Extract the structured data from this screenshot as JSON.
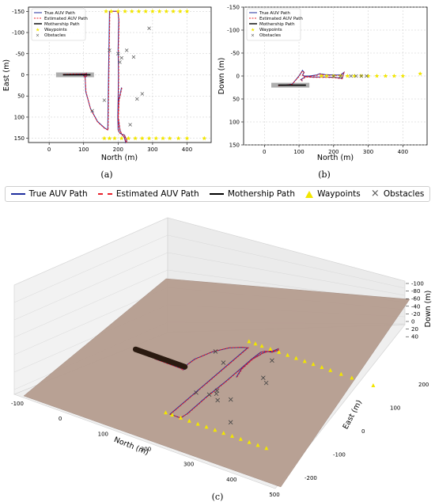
{
  "colors": {
    "true_path": "#1f2e9e",
    "estimated_path": "#e8202a",
    "mothership": "#000000",
    "waypoints": "#f2e600",
    "obstacles": "#555555",
    "floor": "#b39a8c",
    "shadow": "#a0a0a0"
  },
  "legend_labels": {
    "true": "True AUV Path",
    "est": "Estimated AUV Path",
    "ship": "Mothership Path",
    "wp": "Waypoints",
    "obs": "Obstacles"
  },
  "panel_labels": {
    "a": "(a)",
    "b": "(b)",
    "c": "(c)"
  },
  "chart_data": [
    {
      "type": "line",
      "panel": "(a)",
      "xlabel": "North (m)",
      "ylabel": "East (m)",
      "xlim": [
        -60,
        470
      ],
      "ylim": [
        -160,
        160
      ],
      "y_inverted": true,
      "xticks": [
        0,
        100,
        200,
        300,
        400
      ],
      "yticks": [
        -150,
        -100,
        -50,
        0,
        50,
        100,
        150
      ],
      "grid": true,
      "legend_position": "top-left",
      "legend": [
        "True AUV Path",
        "Estimated AUV Path",
        "Mothership Path",
        "Waypoints",
        "Obstacles"
      ],
      "series": [
        {
          "name": "True AUV Path",
          "x": [
            40,
            70,
            100,
            104,
            100,
            104,
            108,
            110,
            108,
            104,
            106,
            120,
            140,
            160,
            170,
            175,
            200,
            202,
            200,
            201,
            200,
            199,
            200,
            205,
            210,
            218,
            225,
            222,
            218,
            210,
            205,
            200,
            202,
            210
          ],
          "y": [
            -1,
            -1,
            -2,
            -2,
            2,
            6,
            4,
            0,
            -4,
            0,
            40,
            80,
            110,
            125,
            130,
            -150,
            -150,
            -130,
            -60,
            0,
            60,
            100,
            130,
            138,
            140,
            142,
            155,
            160,
            148,
            140,
            130,
            100,
            60,
            30
          ]
        },
        {
          "name": "Estimated AUV Path",
          "x": [
            40,
            70,
            100,
            104,
            100,
            104,
            108,
            110,
            108,
            104,
            107,
            120,
            140,
            160,
            171,
            176,
            199,
            203,
            201,
            202,
            201,
            200,
            201,
            206,
            211,
            219,
            226,
            223,
            219,
            211,
            206,
            201,
            203,
            211
          ],
          "y": [
            -1,
            -2,
            -2,
            -3,
            2,
            6,
            4,
            0,
            -4,
            0,
            40,
            81,
            111,
            126,
            131,
            -150,
            -150,
            -129,
            -59,
            1,
            61,
            101,
            131,
            139,
            141,
            143,
            156,
            160,
            148,
            141,
            131,
            101,
            61,
            31
          ]
        },
        {
          "name": "Mothership Path",
          "x": [
            40,
            120
          ],
          "y": [
            0,
            0
          ]
        }
      ],
      "waypoints": {
        "x": [
          165,
          180,
          200,
          220,
          240,
          260,
          280,
          300,
          320,
          340,
          360,
          380,
          400,
          160,
          175,
          190,
          210,
          230,
          250,
          270,
          290,
          310,
          330,
          350,
          375,
          400,
          450
        ],
        "y": [
          -150,
          -150,
          -150,
          -150,
          -150,
          -150,
          -150,
          -150,
          -150,
          -150,
          -150,
          -150,
          -150,
          150,
          150,
          150,
          150,
          150,
          150,
          150,
          150,
          150,
          150,
          150,
          150,
          150,
          150
        ]
      },
      "obstacles": {
        "x": [
          290,
          175,
          225,
          200,
          245,
          210,
          205,
          160,
          270,
          255,
          125,
          235
        ],
        "y": [
          -110,
          -58,
          -58,
          -50,
          -42,
          -40,
          -30,
          60,
          45,
          57,
          85,
          118
        ]
      }
    },
    {
      "type": "line",
      "panel": "(b)",
      "xlabel": "North (m)",
      "ylabel": "Down (m)",
      "xlim": [
        -60,
        470
      ],
      "ylim": [
        -150,
        150
      ],
      "y_inverted": true,
      "xticks": [
        0,
        100,
        200,
        300,
        400
      ],
      "yticks": [
        -150,
        -100,
        -50,
        0,
        50,
        100,
        150
      ],
      "grid": true,
      "legend_position": "top-left",
      "legend": [
        "True AUV Path",
        "Estimated AUV Path",
        "Mothership Path",
        "Waypoints",
        "Obstacles"
      ],
      "series": [
        {
          "name": "True AUV Path",
          "x": [
            40,
            60,
            80,
            100,
            110,
            115,
            110,
            115,
            130,
            150,
            160,
            175,
            200,
            220,
            230,
            225,
            205,
            180,
            160,
            140,
            120,
            105,
            110
          ],
          "y": [
            20,
            20,
            18,
            0,
            -12,
            -8,
            -2,
            0,
            0,
            -2,
            -5,
            -3,
            -2,
            -2,
            -8,
            5,
            3,
            2,
            2,
            2,
            1,
            8,
            10
          ]
        },
        {
          "name": "Estimated AUV Path",
          "x": [
            40,
            60,
            80,
            100,
            110,
            115,
            110,
            115,
            130,
            150,
            160,
            175,
            200,
            220,
            230,
            225,
            205,
            180,
            160,
            140,
            120,
            105,
            110
          ],
          "y": [
            21,
            20,
            18,
            1,
            -11,
            -7,
            -1,
            1,
            1,
            -1,
            -4,
            -2,
            -1,
            -1,
            -7,
            6,
            4,
            3,
            3,
            3,
            2,
            9,
            11
          ]
        },
        {
          "name": "Mothership Path",
          "x": [
            40,
            120
          ],
          "y": [
            20,
            20
          ]
        }
      ],
      "waypoints": {
        "x": [
          165,
          180,
          200,
          220,
          240,
          260,
          280,
          300,
          325,
          350,
          375,
          400,
          450
        ],
        "y": [
          0,
          0,
          0,
          0,
          0,
          0,
          0,
          0,
          0,
          0,
          0,
          0,
          -5
        ]
      },
      "obstacles": {
        "x": [
          200,
          220,
          250,
          265,
          280,
          295
        ],
        "y": [
          0,
          0,
          0,
          0,
          0,
          0
        ]
      }
    },
    {
      "type": "scatter",
      "panel": "(c)",
      "projection": "3d",
      "xlabel": "North (m)",
      "ylabel": "East (m)",
      "zlabel": "Down (m)",
      "xticks": [
        -100,
        0,
        100,
        200,
        300,
        400,
        500
      ],
      "yticks": [
        -200,
        -100,
        0,
        100,
        200
      ],
      "zticks": [
        -100,
        -80,
        -60,
        -40,
        -20,
        0,
        20,
        40
      ],
      "grid": true,
      "legend_position": "top",
      "legend": [
        "True AUV Path",
        "Estimated AUV Path",
        "Mothership Path",
        "Waypoints",
        "Obstacles"
      ]
    }
  ]
}
